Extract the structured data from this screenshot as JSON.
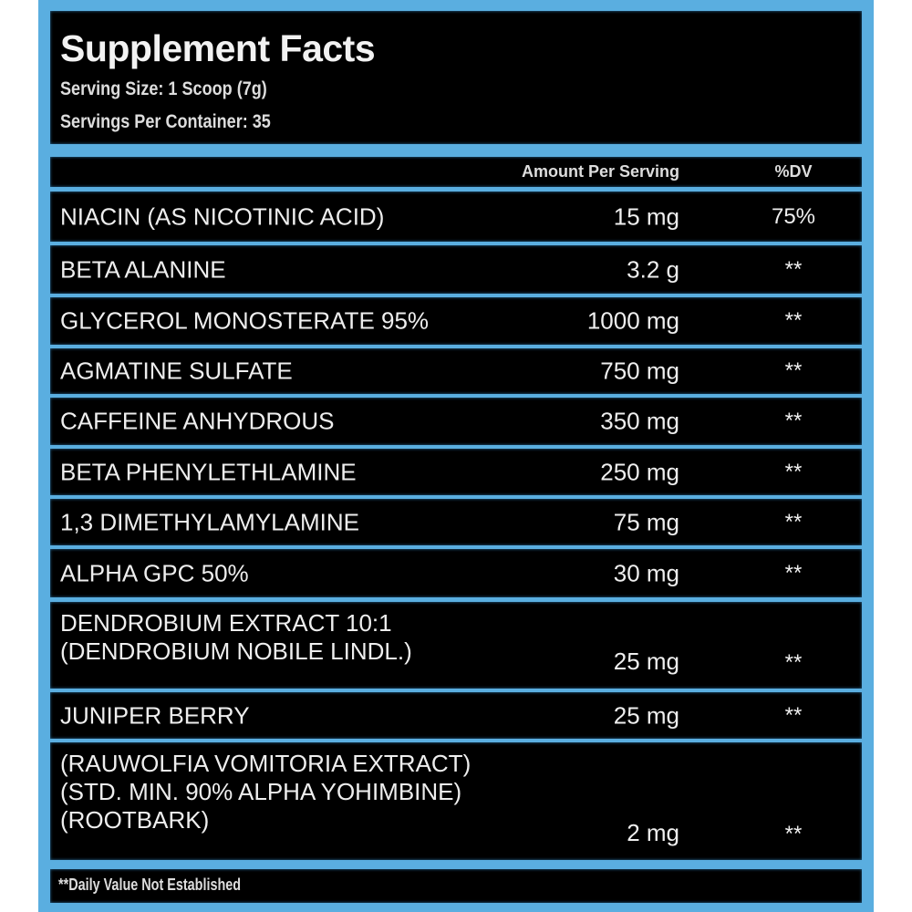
{
  "header": {
    "title": "Supplement Facts",
    "serving_size": "Serving Size: 1 Scoop (7g)",
    "servings_per_container": "Servings Per Container: 35"
  },
  "columns": {
    "amount": "Amount Per Serving",
    "dv": "%DV"
  },
  "rows": [
    {
      "name": "NIACIN (AS NICOTINIC ACID)",
      "amount": "15 mg",
      "dv": "75%"
    },
    {
      "name": "BETA ALANINE",
      "amount": "3.2 g",
      "dv": "**"
    },
    {
      "name": "GLYCEROL MONOSTERATE 95%",
      "amount": "1000 mg",
      "dv": "**"
    },
    {
      "name": "AGMATINE SULFATE",
      "amount": "750 mg",
      "dv": "**"
    },
    {
      "name": "CAFFEINE ANHYDROUS",
      "amount": "350 mg",
      "dv": "**"
    },
    {
      "name": "BETA PHENYLETHLAMINE",
      "amount": "250 mg",
      "dv": "**"
    },
    {
      "name": "1,3 DIMETHYLAMYLAMINE",
      "amount": "75 mg",
      "dv": "**"
    },
    {
      "name": "ALPHA GPC 50%",
      "amount": "30 mg",
      "dv": "**"
    },
    {
      "name": "DENDROBIUM EXTRACT 10:1\n(DENDROBIUM NOBILE LINDL.)",
      "amount": "25 mg",
      "dv": "**"
    },
    {
      "name": "JUNIPER BERRY",
      "amount": "25 mg",
      "dv": "**"
    },
    {
      "name": "(RAUWOLFIA VOMITORIA EXTRACT)\n(STD. MIN. 90% ALPHA YOHIMBINE)\n(ROOTBARK)",
      "amount": "2 mg",
      "dv": "**"
    }
  ],
  "footnote": "**Daily Value Not Established",
  "colors": {
    "frame": "#5aaee0",
    "panel": "#000000",
    "text": "#eeeeee"
  }
}
